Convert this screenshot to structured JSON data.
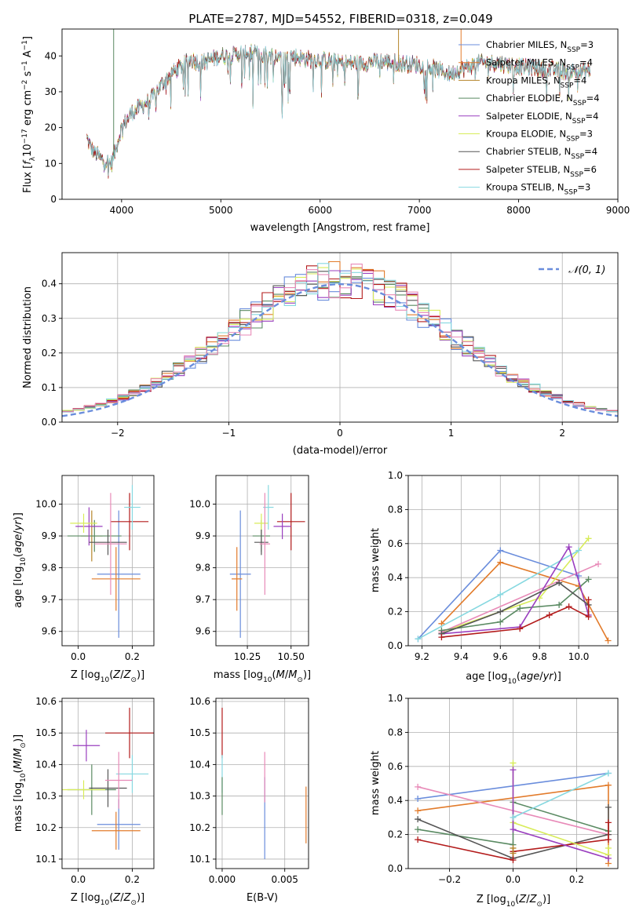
{
  "figure_title": "PLATE=2787, MJD=54552, FIBERID=0318, z=0.049",
  "colors": {
    "chabrier_miles": "#6a8ddc",
    "salpeter_miles": "#e27b2b",
    "kroupa_miles": "#b5852a",
    "chabrier_elodie": "#5a8a62",
    "salpeter_elodie": "#9a3fbf",
    "kroupa_elodie": "#d8ec5a",
    "chabrier_stelib": "#555555",
    "salpeter_stelib": "#b31b1b",
    "kroupa_stelib": "#86d8e0",
    "pink": "#e88ab8",
    "grid": "#b0b0b0"
  },
  "chart_data": [
    {
      "id": "spectrum",
      "type": "line",
      "xlabel": "wavelength [Angstrom, rest frame]",
      "ylabel": "Flux [fλ10⁻¹⁷ erg cm⁻² s⁻¹ A⁻¹]",
      "xlim": [
        3400,
        9000
      ],
      "ylim": [
        0,
        47.5
      ],
      "xticks": [
        4000,
        5000,
        6000,
        7000,
        8000,
        9000
      ],
      "yticks": [
        0,
        10,
        20,
        30,
        40
      ],
      "grid": false,
      "legend_position": "top-right",
      "continuum": {
        "x": [
          3650,
          3700,
          3800,
          3900,
          3950,
          4000,
          4100,
          4200,
          4300,
          4400,
          4500,
          4600,
          4700,
          4800,
          4900,
          5000,
          5100,
          5200,
          5300,
          5400,
          5500,
          5600,
          5700,
          5800,
          5900,
          6000,
          6200,
          6400,
          6600,
          6800,
          7000,
          7100,
          7200,
          7300,
          7400,
          7600,
          7800,
          8000,
          8200,
          8400,
          8600,
          8720
        ],
        "y": [
          17,
          14,
          11,
          10,
          15,
          20,
          24,
          26,
          28,
          32,
          35,
          37,
          39,
          38,
          39,
          40,
          40,
          41,
          41,
          40.5,
          40,
          40,
          40,
          39.5,
          39,
          39,
          38,
          38,
          38.5,
          38,
          37.5,
          37,
          36,
          35,
          36,
          38,
          38,
          37,
          36.5,
          36,
          35.5,
          36
        ]
      },
      "drop_lines": [
        {
          "x": 3920,
          "series": "chabrier_elodie"
        },
        {
          "x": 6790,
          "series": "kroupa_miles"
        },
        {
          "x": 7420,
          "series": "salpeter_miles"
        }
      ],
      "series": [
        {
          "key": "chabrier_miles",
          "name": "Chabrier MILES, N",
          "sub": "SSP",
          "nssp": "=3"
        },
        {
          "key": "salpeter_miles",
          "name": "Salpeter MILES, N",
          "sub": "SSP",
          "nssp": "=4"
        },
        {
          "key": "kroupa_miles",
          "name": "Kroupa MILES, N",
          "sub": "SSP",
          "nssp": "=4"
        },
        {
          "key": "chabrier_elodie",
          "name": "Chabrier ELODIE, N",
          "sub": "SSP",
          "nssp": "=4"
        },
        {
          "key": "salpeter_elodie",
          "name": "Salpeter ELODIE, N",
          "sub": "SSP",
          "nssp": "=4"
        },
        {
          "key": "kroupa_elodie",
          "name": "Kroupa ELODIE, N",
          "sub": "SSP",
          "nssp": "=3"
        },
        {
          "key": "chabrier_stelib",
          "name": "Chabrier STELIB, N",
          "sub": "SSP",
          "nssp": "=4"
        },
        {
          "key": "salpeter_stelib",
          "name": "Salpeter STELIB, N",
          "sub": "SSP",
          "nssp": "=6"
        },
        {
          "key": "kroupa_stelib",
          "name": "Kroupa STELIB, N",
          "sub": "SSP",
          "nssp": "=3"
        }
      ]
    },
    {
      "id": "residuals",
      "type": "bar",
      "xlabel": "(data-model)/error",
      "ylabel": "Normed distribution",
      "xlim": [
        -2.5,
        2.5
      ],
      "ylim": [
        0,
        0.49
      ],
      "xticks": [
        -2,
        -1,
        0,
        1,
        2
      ],
      "yticks": [
        0.0,
        0.1,
        0.2,
        0.3,
        0.4
      ],
      "grid": true,
      "legend_position": "top-right",
      "legend": "𝒩(0, 1)",
      "bin_width": 0.1,
      "bin_start": -2.5
    },
    {
      "id": "age_vs_Z",
      "type": "scatter",
      "xlabel": "Z [log₁₀(Z/Z⊙)]",
      "ylabel": "age  [log₁₀(age/yr)]",
      "xlim": [
        -0.06,
        0.28
      ],
      "ylim": [
        9.555,
        10.09
      ],
      "xticks": [
        0.0,
        0.2
      ],
      "yticks": [
        9.6,
        9.7,
        9.8,
        9.9,
        10.0
      ],
      "grid": true,
      "points": [
        {
          "key": "chabrier_miles",
          "x": 0.15,
          "y": 9.78,
          "xerr": 0.08,
          "yerr": 0.2
        },
        {
          "key": "salpeter_miles",
          "x": 0.14,
          "y": 9.765,
          "xerr": 0.09,
          "yerr": 0.1
        },
        {
          "key": "kroupa_miles",
          "x": 0.05,
          "y": 9.9,
          "xerr": 0.04,
          "yerr": 0.08
        },
        {
          "key": "chabrier_elodie",
          "x": 0.06,
          "y": 9.9,
          "xerr": 0.1,
          "yerr": 0.05
        },
        {
          "key": "salpeter_elodie",
          "x": 0.04,
          "y": 9.93,
          "xerr": 0.05,
          "yerr": 0.06
        },
        {
          "key": "kroupa_elodie",
          "x": 0.02,
          "y": 9.94,
          "xerr": 0.05,
          "yerr": 0.03
        },
        {
          "key": "chabrier_stelib",
          "x": 0.11,
          "y": 9.88,
          "xerr": 0.07,
          "yerr": 0.04
        },
        {
          "key": "salpeter_stelib",
          "x": 0.19,
          "y": 9.945,
          "xerr": 0.07,
          "yerr": 0.09
        },
        {
          "key": "kroupa_stelib",
          "x": 0.2,
          "y": 9.99,
          "xerr": 0.03,
          "yerr": 0.07
        },
        {
          "key": "pink",
          "x": 0.12,
          "y": 9.875,
          "xerr": 0.06,
          "yerr": 0.16
        }
      ]
    },
    {
      "id": "age_vs_mass",
      "type": "scatter",
      "xlabel": "mass [log₁₀(M/M⊙)]",
      "xlim": [
        10.07,
        10.6
      ],
      "ylim": [
        9.555,
        10.09
      ],
      "xticks": [
        10.25,
        10.5
      ],
      "yticks": [
        9.6,
        9.7,
        9.8,
        9.9,
        10.0
      ],
      "grid": true,
      "points": [
        {
          "key": "chabrier_miles",
          "x": 10.21,
          "y": 9.78,
          "xerr": 0.06,
          "yerr": 0.2
        },
        {
          "key": "salpeter_miles",
          "x": 10.19,
          "y": 9.765,
          "xerr": 0.03,
          "yerr": 0.1
        },
        {
          "key": "chabrier_elodie",
          "x": 10.33,
          "y": 9.9,
          "xerr": 0.05,
          "yerr": 0.05
        },
        {
          "key": "kroupa_elodie",
          "x": 10.33,
          "y": 9.94,
          "xerr": 0.04,
          "yerr": 0.03
        },
        {
          "key": "chabrier_stelib",
          "x": 10.33,
          "y": 9.88,
          "xerr": 0.04,
          "yerr": 0.04
        },
        {
          "key": "salpeter_stelib",
          "x": 10.5,
          "y": 9.945,
          "xerr": 0.08,
          "yerr": 0.09
        },
        {
          "key": "kroupa_stelib",
          "x": 10.37,
          "y": 9.99,
          "xerr": 0.03,
          "yerr": 0.07
        },
        {
          "key": "pink",
          "x": 10.35,
          "y": 9.875,
          "xerr": 0.03,
          "yerr": 0.16
        },
        {
          "key": "salpeter_elodie",
          "x": 10.45,
          "y": 9.93,
          "xerr": 0.05,
          "yerr": 0.04
        }
      ]
    },
    {
      "id": "weight_vs_age",
      "type": "line",
      "xlabel": "age  [log₁₀(age/yr)]",
      "ylabel": "mass weight",
      "xlim": [
        9.13,
        10.2
      ],
      "ylim": [
        0,
        1.0
      ],
      "xticks": [
        9.2,
        9.4,
        9.6,
        9.8,
        10.0
      ],
      "yticks": [
        0.0,
        0.2,
        0.4,
        0.6,
        0.8,
        1.0
      ],
      "grid": true,
      "series": [
        {
          "key": "chabrier_miles",
          "x": [
            9.18,
            9.6,
            10.0
          ],
          "y": [
            0.04,
            0.56,
            0.41
          ]
        },
        {
          "key": "salpeter_miles",
          "x": [
            9.3,
            9.6,
            10.0,
            10.15
          ],
          "y": [
            0.13,
            0.49,
            0.35,
            0.03
          ]
        },
        {
          "key": "kroupa_elodie",
          "x": [
            9.3,
            9.8,
            10.05
          ],
          "y": [
            0.08,
            0.28,
            0.63
          ]
        },
        {
          "key": "kroupa_stelib",
          "x": [
            9.18,
            9.6,
            10.0
          ],
          "y": [
            0.04,
            0.3,
            0.56
          ]
        },
        {
          "key": "pink",
          "x": [
            9.3,
            10.1
          ],
          "y": [
            0.08,
            0.48
          ]
        },
        {
          "key": "chabrier_elodie",
          "x": [
            9.3,
            9.6,
            9.7,
            9.9,
            10.05
          ],
          "y": [
            0.09,
            0.14,
            0.22,
            0.24,
            0.39
          ]
        },
        {
          "key": "salpeter_elodie",
          "x": [
            9.3,
            9.7,
            9.95,
            10.05
          ],
          "y": [
            0.07,
            0.11,
            0.58,
            0.18
          ]
        },
        {
          "key": "chabrier_stelib",
          "x": [
            9.3,
            9.6,
            9.9,
            10.05
          ],
          "y": [
            0.07,
            0.2,
            0.37,
            0.24
          ]
        },
        {
          "key": "salpeter_stelib",
          "x": [
            9.3,
            9.7,
            9.85,
            9.95,
            10.05,
            10.05
          ],
          "y": [
            0.05,
            0.1,
            0.18,
            0.23,
            0.17,
            0.27
          ]
        }
      ]
    },
    {
      "id": "mass_vs_Z",
      "type": "scatter",
      "xlabel": "Z [log₁₀(Z/Z⊙)]",
      "ylabel": "mass [log₁₀(M/M⊙)]",
      "xlim": [
        -0.06,
        0.28
      ],
      "ylim": [
        10.07,
        10.61
      ],
      "xticks": [
        0.0,
        0.2
      ],
      "yticks": [
        10.1,
        10.2,
        10.3,
        10.4,
        10.5,
        10.6
      ],
      "grid": true,
      "points": [
        {
          "key": "chabrier_miles",
          "x": 0.15,
          "y": 10.21,
          "xerr": 0.08,
          "yerr": 0.08
        },
        {
          "key": "salpeter_miles",
          "x": 0.14,
          "y": 10.19,
          "xerr": 0.09,
          "yerr": 0.06
        },
        {
          "key": "chabrier_elodie",
          "x": 0.05,
          "y": 10.32,
          "xerr": 0.09,
          "yerr": 0.08
        },
        {
          "key": "kroupa_elodie",
          "x": 0.02,
          "y": 10.32,
          "xerr": 0.08,
          "yerr": 0.03
        },
        {
          "key": "chabrier_stelib",
          "x": 0.11,
          "y": 10.325,
          "xerr": 0.07,
          "yerr": 0.06
        },
        {
          "key": "salpeter_stelib",
          "x": 0.19,
          "y": 10.5,
          "xerr": 0.09,
          "yerr": 0.08
        },
        {
          "key": "kroupa_stelib",
          "x": 0.2,
          "y": 10.37,
          "xerr": 0.06,
          "yerr": 0.06
        },
        {
          "key": "pink",
          "x": 0.15,
          "y": 10.35,
          "xerr": 0.05,
          "yerr": 0.09
        },
        {
          "key": "salpeter_elodie",
          "x": 0.03,
          "y": 10.46,
          "xerr": 0.05,
          "yerr": 0.05
        }
      ]
    },
    {
      "id": "mass_vs_ebv",
      "type": "scatter",
      "xlabel": "E(B-V)",
      "xlim": [
        -0.0005,
        0.0069
      ],
      "ylim": [
        10.07,
        10.61
      ],
      "xticks": [
        0.0,
        0.005
      ],
      "xtick_labels": [
        "0.000",
        "0.005"
      ],
      "yticks": [
        10.1,
        10.2,
        10.3,
        10.4,
        10.5,
        10.6
      ],
      "grid": true,
      "points": [
        {
          "key": "chabrier_miles",
          "x": 0.0034,
          "y": 10.23,
          "yerr": 0.13
        },
        {
          "key": "salpeter_miles",
          "x": 0.0067,
          "y": 10.24,
          "yerr": 0.09
        },
        {
          "key": "pink",
          "x": 0.0034,
          "y": 10.36,
          "yerr": 0.08
        },
        {
          "key": "salpeter_stelib",
          "x": 0.0,
          "y": 10.5,
          "yerr": 0.08
        },
        {
          "key": "kroupa_stelib",
          "x": 0.0,
          "y": 10.37,
          "yerr": 0.06
        },
        {
          "key": "chabrier_elodie",
          "x": 0.0,
          "y": 10.3,
          "yerr": 0.06
        }
      ]
    },
    {
      "id": "weight_vs_Z",
      "type": "line",
      "xlabel": "Z [log₁₀(Z/Z⊙)]",
      "ylabel": "mass weight",
      "xlim": [
        -0.33,
        0.33
      ],
      "ylim": [
        0,
        1.0
      ],
      "xticks": [
        -0.2,
        0.0,
        0.2
      ],
      "yticks": [
        0.0,
        0.2,
        0.4,
        0.6,
        0.8,
        1.0
      ],
      "grid": true,
      "series": [
        {
          "key": "chabrier_miles",
          "x": [
            -0.3,
            0.3
          ],
          "y": [
            0.41,
            0.56
          ]
        },
        {
          "key": "salpeter_miles",
          "x": [
            -0.3,
            0.3,
            0.3
          ],
          "y": [
            0.34,
            0.49,
            0.03
          ]
        },
        {
          "key": "pink",
          "x": [
            -0.3,
            0.3
          ],
          "y": [
            0.48,
            0.2
          ]
        },
        {
          "key": "chabrier_elodie",
          "x": [
            -0.3,
            0.0,
            0.0,
            0.3
          ],
          "y": [
            0.23,
            0.14,
            0.39,
            0.22
          ]
        },
        {
          "key": "chabrier_stelib",
          "x": [
            -0.3,
            0.0,
            0.3,
            0.3
          ],
          "y": [
            0.29,
            0.06,
            0.2,
            0.36
          ]
        },
        {
          "key": "salpeter_stelib",
          "x": [
            -0.3,
            0.0,
            0.0,
            0.3,
            0.3
          ],
          "y": [
            0.17,
            0.05,
            0.1,
            0.17,
            0.27
          ]
        },
        {
          "key": "kroupa_elodie",
          "x": [
            0.0,
            0.0,
            0.3,
            0.3
          ],
          "y": [
            0.62,
            0.27,
            0.08,
            0.12
          ]
        },
        {
          "key": "salpeter_elodie",
          "x": [
            0.0,
            0.0,
            0.3
          ],
          "y": [
            0.58,
            0.23,
            0.06
          ]
        },
        {
          "key": "kroupa_stelib",
          "x": [
            0.0,
            0.3
          ],
          "y": [
            0.3,
            0.56
          ]
        },
        {
          "key": "kroupa_miles",
          "x": [
            0.0,
            0.0
          ],
          "y": [
            0.12,
            0.09
          ]
        }
      ]
    }
  ]
}
